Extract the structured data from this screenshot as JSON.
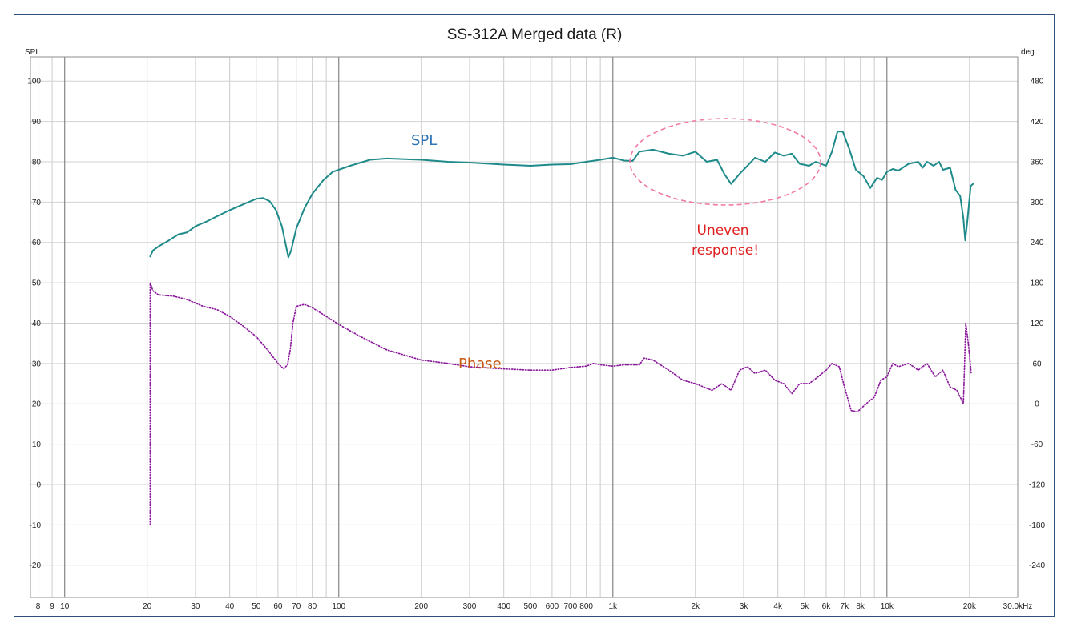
{
  "chart_data": {
    "type": "line",
    "title": "SS-312A Merged data (R)",
    "ylabel_left": "SPL",
    "ylabel_right": "deg",
    "xunit": "kHz",
    "xscale": "log",
    "xlim": [
      7.5,
      30000
    ],
    "ylim_left": [
      -28,
      106
    ],
    "ylim_right": [
      -288,
      516
    ],
    "grid": true,
    "x_tick_labels": [
      {
        "v": 8,
        "t": "8"
      },
      {
        "v": 9,
        "t": "9"
      },
      {
        "v": 10,
        "t": "10"
      },
      {
        "v": 20,
        "t": "20"
      },
      {
        "v": 30,
        "t": "30"
      },
      {
        "v": 40,
        "t": "40"
      },
      {
        "v": 50,
        "t": "50"
      },
      {
        "v": 60,
        "t": "60"
      },
      {
        "v": 70,
        "t": "70"
      },
      {
        "v": 80,
        "t": "80"
      },
      {
        "v": 100,
        "t": "100"
      },
      {
        "v": 200,
        "t": "200"
      },
      {
        "v": 300,
        "t": "300"
      },
      {
        "v": 400,
        "t": "400"
      },
      {
        "v": 500,
        "t": "500"
      },
      {
        "v": 600,
        "t": "600"
      },
      {
        "v": 700,
        "t": "700"
      },
      {
        "v": 800,
        "t": "800"
      },
      {
        "v": 1000,
        "t": "1k"
      },
      {
        "v": 2000,
        "t": "2k"
      },
      {
        "v": 3000,
        "t": "3k"
      },
      {
        "v": 4000,
        "t": "4k"
      },
      {
        "v": 5000,
        "t": "5k"
      },
      {
        "v": 6000,
        "t": "6k"
      },
      {
        "v": 7000,
        "t": "7k"
      },
      {
        "v": 8000,
        "t": "8k"
      },
      {
        "v": 10000,
        "t": "10k"
      },
      {
        "v": 20000,
        "t": "20k"
      },
      {
        "v": 30000,
        "t": "30.0kHz"
      }
    ],
    "y_left_ticks": [
      100,
      90,
      80,
      70,
      60,
      50,
      40,
      30,
      20,
      10,
      0,
      -10,
      -20
    ],
    "y_right_ticks": [
      480,
      420,
      360,
      300,
      240,
      180,
      120,
      60,
      0,
      -60,
      -120,
      -180,
      -240
    ],
    "series": [
      {
        "name": "SPL",
        "color": "#1f8a8a",
        "style": "solid",
        "axis": "left",
        "points": [
          [
            20.5,
            56.5
          ],
          [
            21,
            58
          ],
          [
            22,
            59
          ],
          [
            24,
            60.5
          ],
          [
            26,
            62
          ],
          [
            28,
            62.5
          ],
          [
            30,
            64
          ],
          [
            33,
            65.2
          ],
          [
            36,
            66.5
          ],
          [
            40,
            68
          ],
          [
            45,
            69.5
          ],
          [
            50,
            70.8
          ],
          [
            53,
            71
          ],
          [
            56,
            70.2
          ],
          [
            59,
            68
          ],
          [
            62,
            64
          ],
          [
            64,
            59.5
          ],
          [
            65.5,
            56.3
          ],
          [
            67,
            58
          ],
          [
            70,
            63.5
          ],
          [
            75,
            68.5
          ],
          [
            80,
            72
          ],
          [
            88,
            75.5
          ],
          [
            95,
            77.5
          ],
          [
            110,
            79
          ],
          [
            130,
            80.5
          ],
          [
            150,
            80.8
          ],
          [
            200,
            80.5
          ],
          [
            250,
            80
          ],
          [
            300,
            79.8
          ],
          [
            400,
            79.3
          ],
          [
            500,
            79
          ],
          [
            600,
            79.3
          ],
          [
            700,
            79.4
          ],
          [
            800,
            80
          ],
          [
            900,
            80.5
          ],
          [
            1000,
            81
          ],
          [
            1100,
            80.3
          ],
          [
            1180,
            80.2
          ],
          [
            1250,
            82.5
          ],
          [
            1400,
            83
          ],
          [
            1600,
            82
          ],
          [
            1800,
            81.5
          ],
          [
            2000,
            82.5
          ],
          [
            2200,
            80
          ],
          [
            2400,
            80.5
          ],
          [
            2550,
            77
          ],
          [
            2700,
            74.5
          ],
          [
            2900,
            77
          ],
          [
            3100,
            79
          ],
          [
            3300,
            81
          ],
          [
            3600,
            80
          ],
          [
            3900,
            82.3
          ],
          [
            4200,
            81.5
          ],
          [
            4500,
            82
          ],
          [
            4800,
            79.5
          ],
          [
            5200,
            79
          ],
          [
            5500,
            80
          ],
          [
            6000,
            79
          ],
          [
            6300,
            82.5
          ],
          [
            6600,
            87.5
          ],
          [
            6900,
            87.5
          ],
          [
            7300,
            83
          ],
          [
            7700,
            78
          ],
          [
            8200,
            76.5
          ],
          [
            8700,
            73.5
          ],
          [
            9200,
            76
          ],
          [
            9600,
            75.5
          ],
          [
            10000,
            77.5
          ],
          [
            10500,
            78.2
          ],
          [
            11000,
            77.8
          ],
          [
            12000,
            79.5
          ],
          [
            13000,
            80
          ],
          [
            13500,
            78.5
          ],
          [
            14000,
            80
          ],
          [
            14800,
            79
          ],
          [
            15500,
            80
          ],
          [
            16000,
            78
          ],
          [
            17000,
            78.5
          ],
          [
            17800,
            73
          ],
          [
            18500,
            71.5
          ],
          [
            19000,
            66
          ],
          [
            19300,
            60.5
          ],
          [
            19700,
            66
          ],
          [
            20200,
            74
          ],
          [
            20600,
            74.5
          ]
        ]
      },
      {
        "name": "Phase",
        "color": "#8a1a9b",
        "style": "dotted",
        "axis": "right",
        "points": [
          [
            20.5,
            -180
          ],
          [
            20.5,
            180
          ],
          [
            21,
            168
          ],
          [
            22,
            162
          ],
          [
            25,
            160
          ],
          [
            28,
            155
          ],
          [
            32,
            145
          ],
          [
            36,
            140
          ],
          [
            40,
            130
          ],
          [
            45,
            115
          ],
          [
            50,
            100
          ],
          [
            55,
            80
          ],
          [
            60,
            60
          ],
          [
            63,
            52
          ],
          [
            65,
            58
          ],
          [
            66.5,
            80
          ],
          [
            68,
            120
          ],
          [
            70,
            145
          ],
          [
            75,
            148
          ],
          [
            80,
            143
          ],
          [
            90,
            130
          ],
          [
            100,
            118
          ],
          [
            120,
            100
          ],
          [
            150,
            80
          ],
          [
            200,
            65
          ],
          [
            250,
            60
          ],
          [
            300,
            55
          ],
          [
            400,
            52
          ],
          [
            500,
            50
          ],
          [
            600,
            50
          ],
          [
            700,
            54
          ],
          [
            800,
            56
          ],
          [
            850,
            60
          ],
          [
            900,
            58
          ],
          [
            1000,
            56
          ],
          [
            1100,
            58
          ],
          [
            1250,
            58
          ],
          [
            1300,
            68
          ],
          [
            1400,
            65
          ],
          [
            1600,
            50
          ],
          [
            1800,
            35
          ],
          [
            2000,
            30
          ],
          [
            2300,
            20
          ],
          [
            2500,
            30
          ],
          [
            2700,
            20
          ],
          [
            2900,
            50
          ],
          [
            3100,
            55
          ],
          [
            3300,
            45
          ],
          [
            3600,
            50
          ],
          [
            3900,
            35
          ],
          [
            4200,
            30
          ],
          [
            4500,
            15
          ],
          [
            4800,
            30
          ],
          [
            5200,
            30
          ],
          [
            5600,
            40
          ],
          [
            6000,
            50
          ],
          [
            6300,
            60
          ],
          [
            6700,
            55
          ],
          [
            7000,
            25
          ],
          [
            7400,
            -10
          ],
          [
            7800,
            -12
          ],
          [
            8400,
            0
          ],
          [
            9000,
            10
          ],
          [
            9500,
            35
          ],
          [
            10000,
            40
          ],
          [
            10500,
            60
          ],
          [
            11000,
            55
          ],
          [
            12000,
            60
          ],
          [
            13000,
            50
          ],
          [
            14000,
            60
          ],
          [
            15000,
            40
          ],
          [
            16000,
            50
          ],
          [
            17000,
            25
          ],
          [
            18000,
            20
          ],
          [
            18500,
            10
          ],
          [
            19000,
            0
          ],
          [
            19400,
            120
          ],
          [
            19800,
            90
          ],
          [
            20300,
            45
          ]
        ]
      }
    ],
    "annotations": [
      {
        "text": "SPL",
        "color": "#2e75b6"
      },
      {
        "text": "Phase",
        "color": "#c55a11"
      },
      {
        "text": "Uneven",
        "color": "#e02020"
      },
      {
        "text": "response!",
        "color": "#e02020"
      }
    ],
    "highlight_ellipse": {
      "color": "#f07aa8",
      "style": "dashed"
    }
  }
}
